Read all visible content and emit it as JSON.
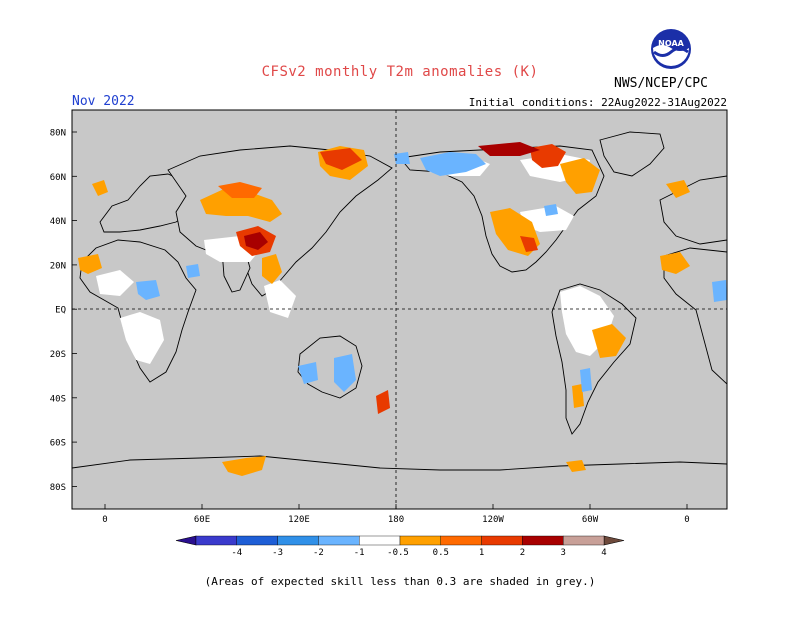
{
  "title": "CFSv2 monthly T2m anomalies (K)",
  "organization": "NWS/NCEP/CPC",
  "logo_text": "NOAA",
  "forecast_period": "Nov 2022",
  "initial_conditions": "Initial conditions: 22Aug2022-31Aug2022",
  "footnote": "(Areas of expected skill less than 0.3 are shaded in grey.)",
  "colors": {
    "ocean": "#c8c8c8",
    "land_skill": "#ffffff",
    "coast": "#000000"
  },
  "lat_labels": [
    "80N",
    "60N",
    "40N",
    "20N",
    "EQ",
    "20S",
    "40S",
    "60S",
    "80S"
  ],
  "lon_labels": [
    "0",
    "60E",
    "120E",
    "180",
    "120W",
    "60W",
    "0"
  ],
  "colorbar": {
    "bins": [
      {
        "color": "#2a0f8f",
        "label": ""
      },
      {
        "color": "#3a3acc",
        "label": "-4"
      },
      {
        "color": "#1e5ed6",
        "label": "-3"
      },
      {
        "color": "#3090e8",
        "label": "-2"
      },
      {
        "color": "#6ab4ff",
        "label": "-1"
      },
      {
        "color": "#ffffff",
        "label": "-0.5"
      },
      {
        "color": "#ffa000",
        "label": "0.5"
      },
      {
        "color": "#ff6a00",
        "label": "1"
      },
      {
        "color": "#e83a00",
        "label": "2"
      },
      {
        "color": "#a80000",
        "label": "3"
      },
      {
        "color": "#c8a098",
        "label": "4"
      },
      {
        "color": "#6e4a3c",
        "label": ""
      }
    ]
  }
}
